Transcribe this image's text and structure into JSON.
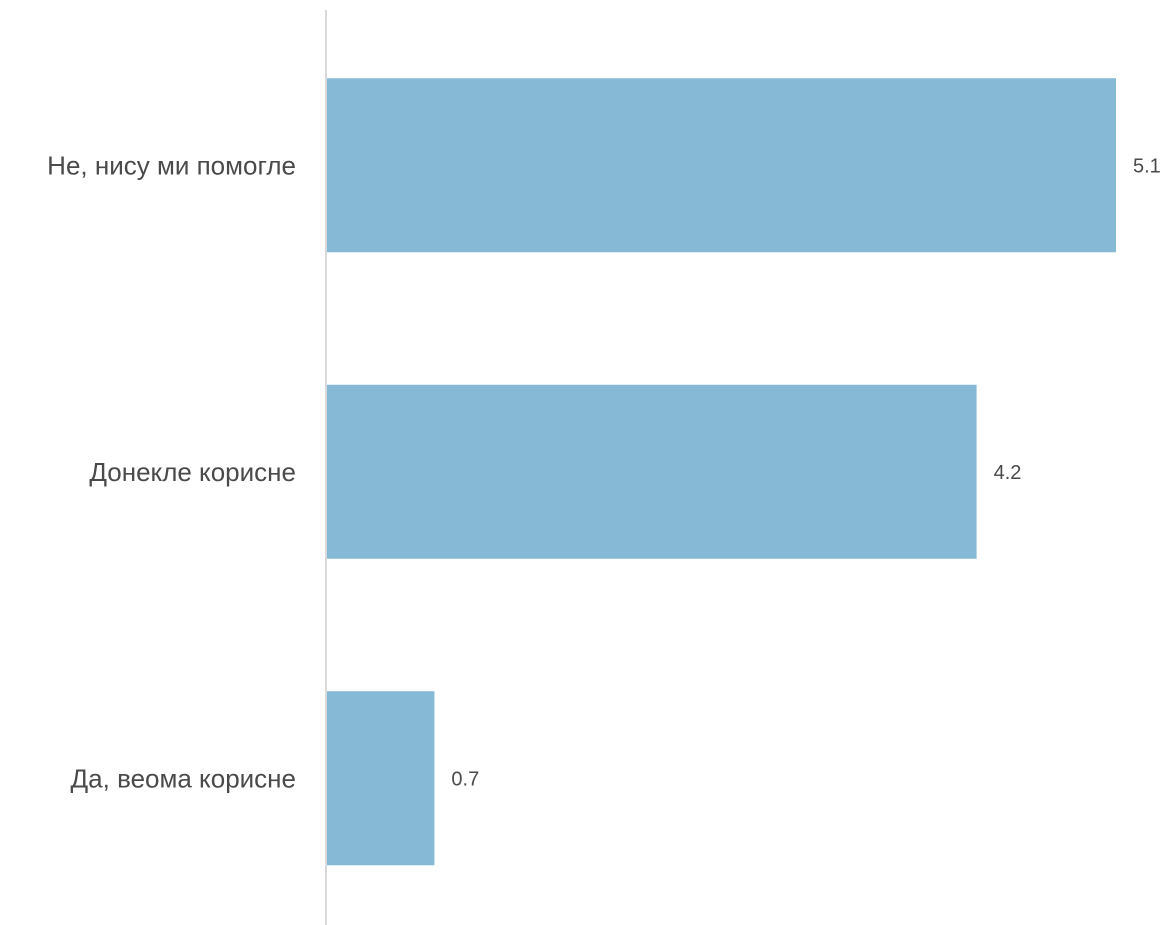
{
  "chart_data": {
    "type": "bar",
    "orientation": "horizontal",
    "categories": [
      "Не, нису ми помогле",
      "Донекле корисне",
      "Да, веома корисне"
    ],
    "values": [
      5.1,
      4.2,
      0.7
    ],
    "data_labels": [
      "5.1",
      "4.2",
      "0.7"
    ],
    "title": "",
    "xlabel": "",
    "ylabel": "",
    "xlim": [
      0,
      5.1
    ],
    "grid": false,
    "legend": "none",
    "bar_color": "#86b9d6",
    "axis_color": "#d9d9d9",
    "text_color": "#4a4a4a"
  }
}
